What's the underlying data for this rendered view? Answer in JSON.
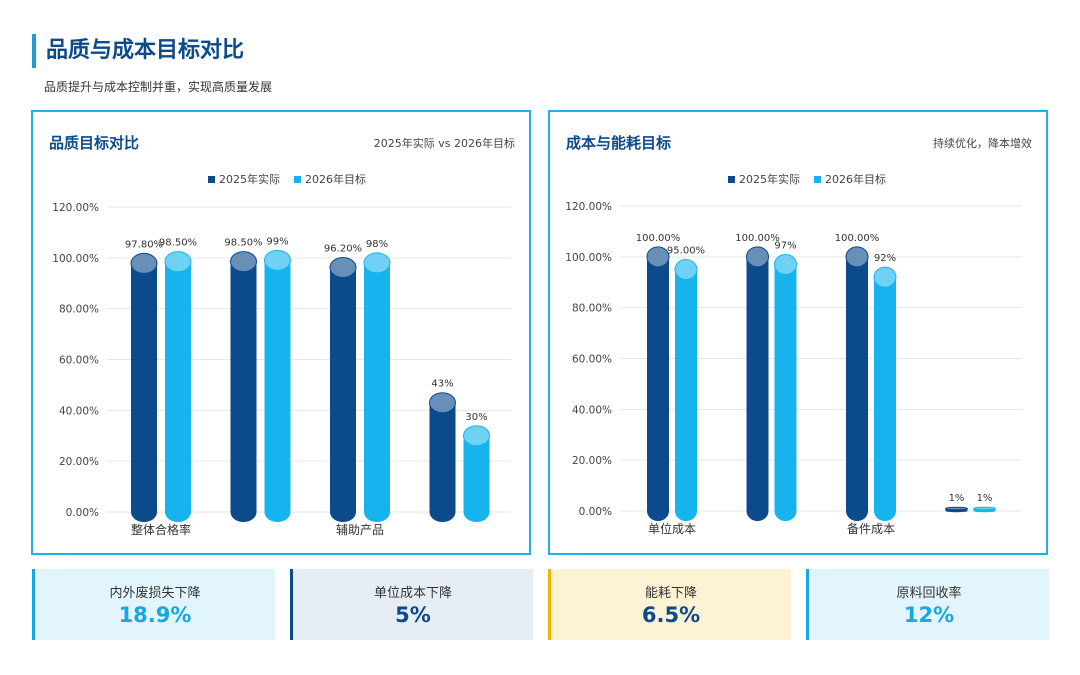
{
  "header": {
    "title": "品质与成本目标对比",
    "subtitle": "品质提升与成本控制并重，实现高质量发展"
  },
  "colors": {
    "actual": "#0b4a8b",
    "target": "#16b4ee",
    "accent": "#1fb0e6"
  },
  "chart_data": [
    {
      "type": "bar",
      "title": "品质目标对比",
      "note": "2025年实际 vs 2026年目标",
      "legend_position": "top-center",
      "grid": true,
      "ylim": [
        0,
        120
      ],
      "yticks": [
        "0.00%",
        "20.00%",
        "40.00%",
        "60.00%",
        "80.00%",
        "100.00%",
        "120.00%"
      ],
      "categories": [
        "整体合格率",
        "",
        "辅助产品",
        ""
      ],
      "series": [
        {
          "name": "2025年实际",
          "values": [
            97.8,
            98.5,
            96.2,
            43
          ],
          "labels": [
            "97.80%",
            "98.50%",
            "96.20%",
            "43%"
          ]
        },
        {
          "name": "2026年目标",
          "values": [
            98.5,
            99,
            98,
            30
          ],
          "labels": [
            "98.50%",
            "99%",
            "98%",
            "30%"
          ]
        }
      ]
    },
    {
      "type": "bar",
      "title": "成本与能耗目标",
      "note": "持续优化，降本增效",
      "legend_position": "top-center",
      "grid": true,
      "ylim": [
        0,
        120
      ],
      "yticks": [
        "0.00%",
        "20.00%",
        "40.00%",
        "60.00%",
        "80.00%",
        "100.00%",
        "120.00%"
      ],
      "categories": [
        "单位成本",
        "",
        "备件成本",
        ""
      ],
      "series": [
        {
          "name": "2025年实际",
          "values": [
            100,
            100,
            100,
            1
          ],
          "labels": [
            "100.00%",
            "100.00%",
            "100.00%",
            "1%"
          ]
        },
        {
          "name": "2026年目标",
          "values": [
            95,
            97,
            92,
            1
          ],
          "labels": [
            "95.00%",
            "97%",
            "92%",
            "1%"
          ]
        }
      ]
    }
  ],
  "kpis": [
    {
      "label": "内外废损失下降",
      "value": "18.9%"
    },
    {
      "label": "单位成本下降",
      "value": "5%"
    },
    {
      "label": "能耗下降",
      "value": "6.5%"
    },
    {
      "label": "原料回收率",
      "value": "12%"
    }
  ]
}
